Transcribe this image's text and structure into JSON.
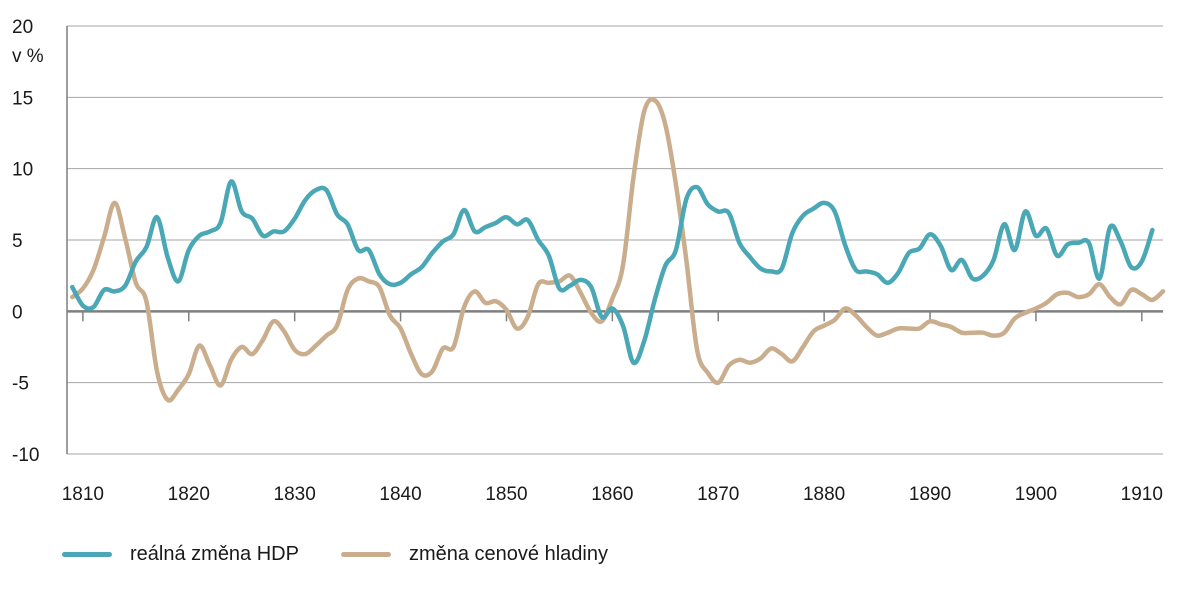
{
  "chart_data": {
    "type": "line",
    "ylabel": "v %",
    "ylim": [
      -10,
      20
    ],
    "yticks": [
      -10,
      -5,
      0,
      5,
      10,
      15,
      20
    ],
    "xlim": [
      1808.5,
      1912
    ],
    "xticks": [
      1810,
      1820,
      1830,
      1840,
      1850,
      1860,
      1870,
      1880,
      1890,
      1900,
      1910
    ],
    "grid": true,
    "legend_position": "bottom-left",
    "series": [
      {
        "name": "reálná změna HDP",
        "color": "#4aa7b5",
        "points": [
          [
            1809,
            1.7
          ],
          [
            1810,
            0.4
          ],
          [
            1811,
            0.3
          ],
          [
            1812,
            1.5
          ],
          [
            1813,
            1.4
          ],
          [
            1814,
            1.8
          ],
          [
            1815,
            3.5
          ],
          [
            1816,
            4.5
          ],
          [
            1817,
            6.6
          ],
          [
            1818,
            3.8
          ],
          [
            1819,
            2.1
          ],
          [
            1820,
            4.3
          ],
          [
            1821,
            5.3
          ],
          [
            1822,
            5.6
          ],
          [
            1823,
            6.2
          ],
          [
            1824,
            9.1
          ],
          [
            1825,
            7.0
          ],
          [
            1826,
            6.5
          ],
          [
            1827,
            5.3
          ],
          [
            1828,
            5.6
          ],
          [
            1829,
            5.6
          ],
          [
            1830,
            6.5
          ],
          [
            1831,
            7.8
          ],
          [
            1832,
            8.5
          ],
          [
            1833,
            8.5
          ],
          [
            1834,
            6.8
          ],
          [
            1835,
            6.1
          ],
          [
            1836,
            4.3
          ],
          [
            1837,
            4.3
          ],
          [
            1838,
            2.6
          ],
          [
            1839,
            1.9
          ],
          [
            1840,
            2.0
          ],
          [
            1841,
            2.6
          ],
          [
            1842,
            3.1
          ],
          [
            1843,
            4.1
          ],
          [
            1844,
            4.9
          ],
          [
            1845,
            5.4
          ],
          [
            1846,
            7.1
          ],
          [
            1847,
            5.6
          ],
          [
            1848,
            5.9
          ],
          [
            1849,
            6.2
          ],
          [
            1850,
            6.6
          ],
          [
            1851,
            6.1
          ],
          [
            1852,
            6.4
          ],
          [
            1853,
            5.0
          ],
          [
            1854,
            3.9
          ],
          [
            1855,
            1.6
          ],
          [
            1856,
            1.8
          ],
          [
            1857,
            2.2
          ],
          [
            1858,
            1.7
          ],
          [
            1859,
            -0.4
          ],
          [
            1860,
            0.2
          ],
          [
            1861,
            -1.0
          ],
          [
            1862,
            -3.6
          ],
          [
            1863,
            -2.1
          ],
          [
            1864,
            0.8
          ],
          [
            1865,
            3.2
          ],
          [
            1866,
            4.3
          ],
          [
            1867,
            7.9
          ],
          [
            1868,
            8.7
          ],
          [
            1869,
            7.5
          ],
          [
            1870,
            7.0
          ],
          [
            1871,
            6.9
          ],
          [
            1872,
            4.8
          ],
          [
            1873,
            3.8
          ],
          [
            1874,
            3.0
          ],
          [
            1875,
            2.8
          ],
          [
            1876,
            3.0
          ],
          [
            1877,
            5.5
          ],
          [
            1878,
            6.7
          ],
          [
            1879,
            7.2
          ],
          [
            1880,
            7.6
          ],
          [
            1881,
            7.0
          ],
          [
            1882,
            4.6
          ],
          [
            1883,
            2.9
          ],
          [
            1884,
            2.8
          ],
          [
            1885,
            2.6
          ],
          [
            1886,
            2.0
          ],
          [
            1887,
            2.7
          ],
          [
            1888,
            4.1
          ],
          [
            1889,
            4.4
          ],
          [
            1890,
            5.4
          ],
          [
            1891,
            4.6
          ],
          [
            1892,
            2.9
          ],
          [
            1893,
            3.6
          ],
          [
            1894,
            2.3
          ],
          [
            1895,
            2.5
          ],
          [
            1896,
            3.6
          ],
          [
            1897,
            6.1
          ],
          [
            1898,
            4.3
          ],
          [
            1899,
            7.0
          ],
          [
            1900,
            5.3
          ],
          [
            1901,
            5.8
          ],
          [
            1902,
            3.9
          ],
          [
            1903,
            4.7
          ],
          [
            1904,
            4.8
          ],
          [
            1905,
            4.8
          ],
          [
            1906,
            2.3
          ],
          [
            1907,
            5.9
          ],
          [
            1908,
            4.9
          ],
          [
            1909,
            3.1
          ],
          [
            1910,
            3.5
          ],
          [
            1911,
            5.7
          ]
        ]
      },
      {
        "name": "změna cenové hladiny",
        "color": "#c9ad8d",
        "points": [
          [
            1809,
            1.0
          ],
          [
            1810,
            1.6
          ],
          [
            1811,
            2.9
          ],
          [
            1812,
            5.2
          ],
          [
            1813,
            7.6
          ],
          [
            1814,
            5.1
          ],
          [
            1815,
            2.0
          ],
          [
            1816,
            0.7
          ],
          [
            1817,
            -4.2
          ],
          [
            1818,
            -6.2
          ],
          [
            1819,
            -5.5
          ],
          [
            1820,
            -4.4
          ],
          [
            1821,
            -2.4
          ],
          [
            1822,
            -3.8
          ],
          [
            1823,
            -5.2
          ],
          [
            1824,
            -3.4
          ],
          [
            1825,
            -2.5
          ],
          [
            1826,
            -3.0
          ],
          [
            1827,
            -2.0
          ],
          [
            1828,
            -0.7
          ],
          [
            1829,
            -1.4
          ],
          [
            1830,
            -2.7
          ],
          [
            1831,
            -3.0
          ],
          [
            1832,
            -2.4
          ],
          [
            1833,
            -1.7
          ],
          [
            1834,
            -1.0
          ],
          [
            1835,
            1.5
          ],
          [
            1836,
            2.3
          ],
          [
            1837,
            2.1
          ],
          [
            1838,
            1.7
          ],
          [
            1839,
            -0.3
          ],
          [
            1840,
            -1.2
          ],
          [
            1841,
            -3.0
          ],
          [
            1842,
            -4.4
          ],
          [
            1843,
            -4.2
          ],
          [
            1844,
            -2.6
          ],
          [
            1845,
            -2.5
          ],
          [
            1846,
            0.3
          ],
          [
            1847,
            1.4
          ],
          [
            1848,
            0.6
          ],
          [
            1849,
            0.7
          ],
          [
            1850,
            0.1
          ],
          [
            1851,
            -1.2
          ],
          [
            1852,
            -0.4
          ],
          [
            1853,
            1.9
          ],
          [
            1854,
            2.0
          ],
          [
            1855,
            2.1
          ],
          [
            1856,
            2.5
          ],
          [
            1857,
            1.3
          ],
          [
            1858,
            -0.1
          ],
          [
            1859,
            -0.7
          ],
          [
            1860,
            0.9
          ],
          [
            1861,
            3.2
          ],
          [
            1862,
            9.4
          ],
          [
            1863,
            14.0
          ],
          [
            1864,
            14.8
          ],
          [
            1865,
            13.1
          ],
          [
            1866,
            8.9
          ],
          [
            1867,
            3.5
          ],
          [
            1868,
            -2.7
          ],
          [
            1869,
            -4.3
          ],
          [
            1870,
            -5.0
          ],
          [
            1871,
            -3.8
          ],
          [
            1872,
            -3.4
          ],
          [
            1873,
            -3.6
          ],
          [
            1874,
            -3.3
          ],
          [
            1875,
            -2.6
          ],
          [
            1876,
            -3.0
          ],
          [
            1877,
            -3.5
          ],
          [
            1878,
            -2.5
          ],
          [
            1879,
            -1.4
          ],
          [
            1880,
            -1.0
          ],
          [
            1881,
            -0.6
          ],
          [
            1882,
            0.2
          ],
          [
            1883,
            -0.3
          ],
          [
            1884,
            -1.1
          ],
          [
            1885,
            -1.7
          ],
          [
            1886,
            -1.5
          ],
          [
            1887,
            -1.2
          ],
          [
            1888,
            -1.2
          ],
          [
            1889,
            -1.2
          ],
          [
            1890,
            -0.7
          ],
          [
            1891,
            -0.9
          ],
          [
            1892,
            -1.1
          ],
          [
            1893,
            -1.5
          ],
          [
            1894,
            -1.5
          ],
          [
            1895,
            -1.5
          ],
          [
            1896,
            -1.7
          ],
          [
            1897,
            -1.5
          ],
          [
            1898,
            -0.5
          ],
          [
            1899,
            -0.1
          ],
          [
            1900,
            0.2
          ],
          [
            1901,
            0.6
          ],
          [
            1902,
            1.2
          ],
          [
            1903,
            1.3
          ],
          [
            1904,
            1.0
          ],
          [
            1905,
            1.2
          ],
          [
            1906,
            1.9
          ],
          [
            1907,
            1.0
          ],
          [
            1908,
            0.5
          ],
          [
            1909,
            1.5
          ],
          [
            1910,
            1.2
          ],
          [
            1911,
            0.8
          ],
          [
            1912,
            1.4
          ]
        ]
      }
    ]
  }
}
